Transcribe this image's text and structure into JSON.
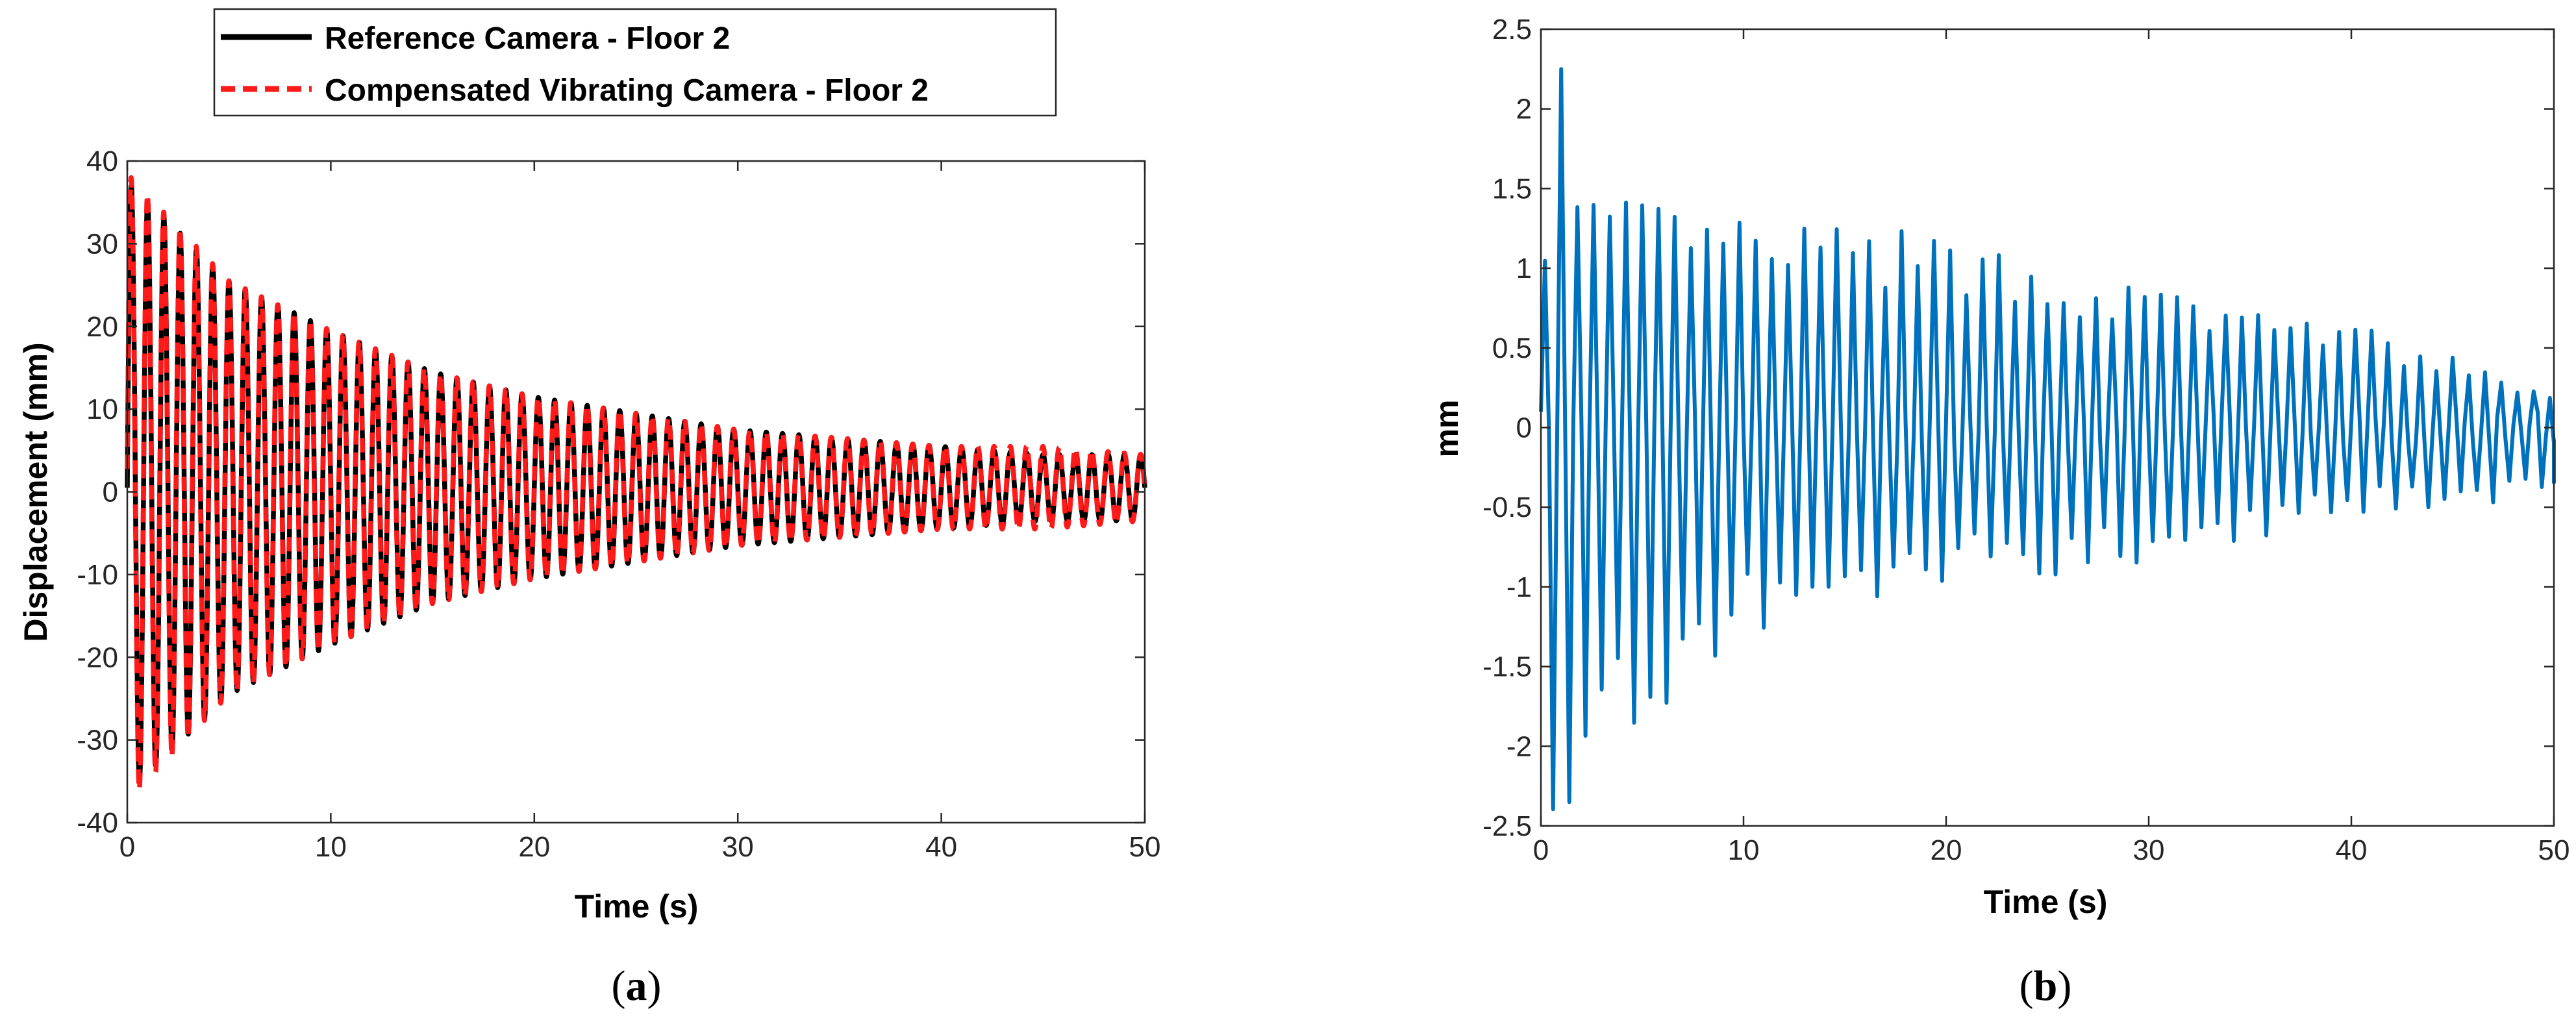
{
  "chart_data": [
    {
      "type": "line",
      "panel_label": "a",
      "xlabel": "Time (s)",
      "ylabel": "Displacement (mm)",
      "xlim": [
        0,
        50
      ],
      "ylim": [
        -40,
        40
      ],
      "xticks": [
        0,
        10,
        20,
        30,
        40,
        50
      ],
      "yticks": [
        -40,
        -30,
        -20,
        -10,
        0,
        10,
        20,
        30,
        40
      ],
      "grid": false,
      "legend": "top",
      "signal": {
        "frequency_hz": 1.25,
        "duration_s": 50,
        "approx_peak_start_mm": 37,
        "approx_peak_end_mm": 4,
        "approx_mean_mm": 0.5
      },
      "series": [
        {
          "name": "Reference Camera - Floor 2",
          "color": "#000000",
          "style": "solid",
          "approx_peaks_mm": [
            [
              0,
              37
            ],
            [
              5,
              25
            ],
            [
              10,
              19
            ],
            [
              15,
              14
            ],
            [
              20,
              11
            ],
            [
              25,
              9
            ],
            [
              30,
              7
            ],
            [
              35,
              6
            ],
            [
              40,
              5
            ],
            [
              45,
              4
            ],
            [
              50,
              4
            ]
          ]
        },
        {
          "name": "Compensated Vibrating Camera - Floor 2",
          "color": "#ff1a1a",
          "style": "dashed",
          "approx_peaks_mm": [
            [
              0,
              38
            ],
            [
              5,
              25
            ],
            [
              10,
              19
            ],
            [
              15,
              14
            ],
            [
              20,
              11
            ],
            [
              25,
              9
            ],
            [
              30,
              7
            ],
            [
              35,
              6
            ],
            [
              40,
              5
            ],
            [
              45,
              5
            ],
            [
              50,
              4
            ]
          ]
        }
      ]
    },
    {
      "type": "line",
      "panel_label": "b",
      "xlabel": "Time (s)",
      "ylabel": "mm",
      "xlim": [
        0,
        50
      ],
      "ylim": [
        -2.5,
        2.5
      ],
      "xticks": [
        0,
        10,
        20,
        30,
        40,
        50
      ],
      "yticks": [
        -2.5,
        -2,
        -1.5,
        -1,
        -0.5,
        0,
        0.5,
        1,
        1.5,
        2,
        2.5
      ],
      "yticklabels": [
        "-2.5",
        "-2",
        "-1.5",
        "-1",
        "-0.5",
        "0",
        "0.5",
        "1",
        "1.5",
        "2",
        "2.5"
      ],
      "grid": false,
      "series": [
        {
          "color": "#0072bd",
          "style": "solid",
          "frequency_hz": 1.25,
          "approx_max": 2.25,
          "approx_max_at_s": 0.7,
          "approx_min": -2.35,
          "approx_min_at_s": 1.5,
          "approx_upper_envelope": [
            [
              0,
              1.4
            ],
            [
              10,
              1.2
            ],
            [
              20,
              1.1
            ],
            [
              30,
              0.8
            ],
            [
              40,
              0.6
            ],
            [
              50,
              0.2
            ]
          ],
          "approx_lower_envelope": [
            [
              0,
              -2.3
            ],
            [
              10,
              -1.2
            ],
            [
              20,
              -0.9
            ],
            [
              30,
              -0.8
            ],
            [
              40,
              -0.5
            ],
            [
              50,
              -0.4
            ]
          ]
        }
      ]
    }
  ]
}
